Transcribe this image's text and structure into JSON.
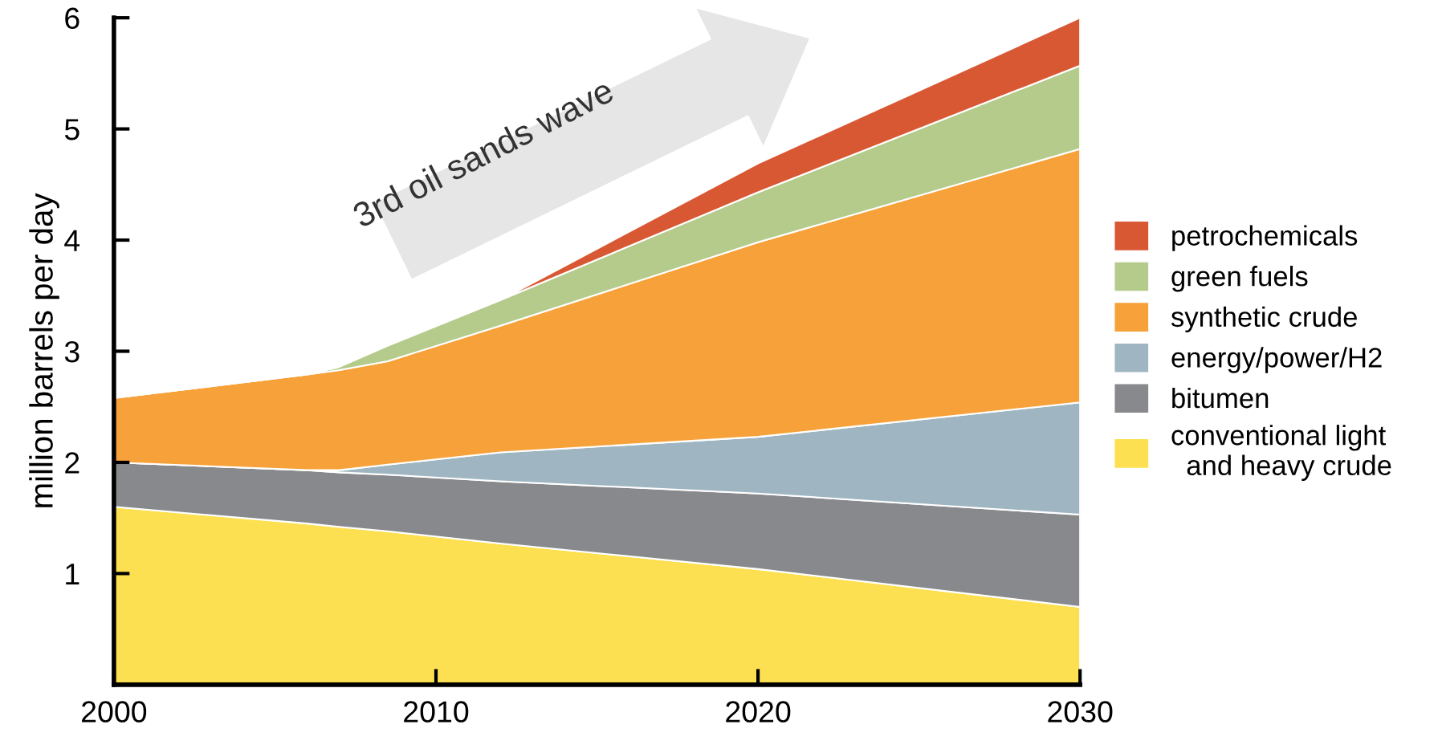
{
  "chart_data": {
    "type": "area",
    "stacked": true,
    "ylabel": "million barrels per day",
    "x": [
      2000,
      2006,
      2007,
      2008.5,
      2012,
      2020,
      2030
    ],
    "xlim": [
      2000,
      2030
    ],
    "xticks": [
      2000,
      2010,
      2020,
      2030
    ],
    "ylim": [
      0,
      6
    ],
    "yticks": [
      1,
      2,
      3,
      4,
      5,
      6
    ],
    "grid": false,
    "legend": "right",
    "annotations": [
      "3rd oil sands wave"
    ],
    "series": [
      {
        "name": "conventional light\n  and heavy crude",
        "color": "#fce051",
        "values": [
          1.6,
          1.45,
          1.42,
          1.38,
          1.27,
          1.04,
          0.7
        ]
      },
      {
        "name": "bitumen",
        "color": "#88898c",
        "values": [
          0.4,
          0.48,
          0.49,
          0.51,
          0.56,
          0.68,
          0.83
        ]
      },
      {
        "name": "energy/power/H2",
        "color": "#9fb5c2",
        "values": [
          0,
          0,
          0.02,
          0.09,
          0.26,
          0.51,
          1.01
        ]
      },
      {
        "name": "synthetic crude",
        "color": "#f7a13a",
        "values": [
          0.58,
          0.86,
          0.9,
          0.93,
          1.14,
          1.75,
          2.28
        ]
      },
      {
        "name": "green fuels",
        "color": "#b5cb8b",
        "values": [
          0,
          0,
          0.03,
          0.14,
          0.23,
          0.45,
          0.75
        ]
      },
      {
        "name": "petrochemicals",
        "color": "#d95834",
        "values": [
          0,
          0,
          0,
          0,
          0,
          0.26,
          0.43
        ]
      }
    ]
  }
}
